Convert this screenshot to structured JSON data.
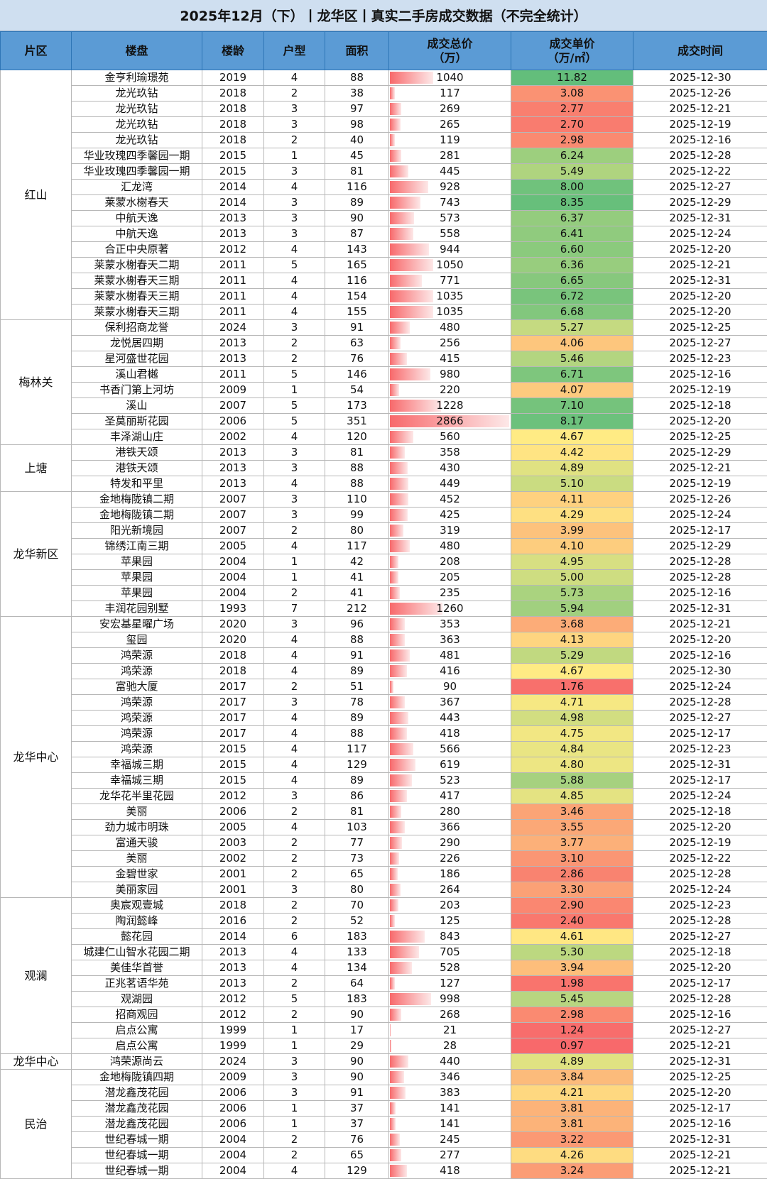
{
  "title": "2025年12月（下）丨龙华区丨真实二手房成交数据（不完全统计）",
  "headers": {
    "district": "片区",
    "estate": "楼盘",
    "year": "楼龄",
    "rooms": "户型",
    "area": "面积",
    "total_l1": "成交总价",
    "total_l2": "（万）",
    "unit_l1": "成交单价",
    "unit_l2": "（万/㎡）",
    "date": "成交时间"
  },
  "colors": {
    "header_bg": "#5b9bd5",
    "title_bg": "#cfdff0",
    "bar_red": "#f8696b",
    "scale_red": "#f8696b",
    "scale_yellow": "#ffeb84",
    "scale_green": "#63be7b"
  },
  "scale": {
    "total_max": 2866,
    "unit_min": 0.97,
    "unit_max": 11.82
  },
  "groups": [
    {
      "district": "红山",
      "rows": [
        [
          "金亨利瑜璟苑",
          "2019",
          "4",
          "88",
          "1040",
          "11.82",
          "2025-12-30"
        ],
        [
          "龙光玖钻",
          "2018",
          "2",
          "38",
          "117",
          "3.08",
          "2025-12-26"
        ],
        [
          "龙光玖钻",
          "2018",
          "3",
          "97",
          "269",
          "2.77",
          "2025-12-21"
        ],
        [
          "龙光玖钻",
          "2018",
          "3",
          "98",
          "265",
          "2.70",
          "2025-12-19"
        ],
        [
          "龙光玖钻",
          "2018",
          "2",
          "40",
          "119",
          "2.98",
          "2025-12-16"
        ],
        [
          "华业玫瑰四季馨园一期",
          "2015",
          "1",
          "45",
          "281",
          "6.24",
          "2025-12-28"
        ],
        [
          "华业玫瑰四季馨园一期",
          "2015",
          "3",
          "81",
          "445",
          "5.49",
          "2025-12-22"
        ],
        [
          "汇龙湾",
          "2014",
          "4",
          "116",
          "928",
          "8.00",
          "2025-12-27"
        ],
        [
          "莱蒙水榭春天",
          "2014",
          "3",
          "89",
          "743",
          "8.35",
          "2025-12-29"
        ],
        [
          "中航天逸",
          "2013",
          "3",
          "90",
          "573",
          "6.37",
          "2025-12-31"
        ],
        [
          "中航天逸",
          "2013",
          "3",
          "87",
          "558",
          "6.41",
          "2025-12-24"
        ],
        [
          "合正中央原著",
          "2012",
          "4",
          "143",
          "944",
          "6.60",
          "2025-12-20"
        ],
        [
          "莱蒙水榭春天二期",
          "2011",
          "5",
          "165",
          "1050",
          "6.36",
          "2025-12-21"
        ],
        [
          "莱蒙水榭春天三期",
          "2011",
          "4",
          "116",
          "771",
          "6.65",
          "2025-12-31"
        ],
        [
          "莱蒙水榭春天三期",
          "2011",
          "4",
          "154",
          "1035",
          "6.72",
          "2025-12-20"
        ],
        [
          "莱蒙水榭春天三期",
          "2011",
          "4",
          "155",
          "1035",
          "6.68",
          "2025-12-20"
        ]
      ]
    },
    {
      "district": "梅林关",
      "rows": [
        [
          "保利招商龙誉",
          "2024",
          "3",
          "91",
          "480",
          "5.27",
          "2025-12-25"
        ],
        [
          "龙悦居四期",
          "2013",
          "2",
          "63",
          "256",
          "4.06",
          "2025-12-27"
        ],
        [
          "星河盛世花园",
          "2013",
          "2",
          "76",
          "415",
          "5.46",
          "2025-12-23"
        ],
        [
          "溪山君樾",
          "2011",
          "5",
          "146",
          "980",
          "6.71",
          "2025-12-16"
        ],
        [
          "书香门第上河坊",
          "2009",
          "1",
          "54",
          "220",
          "4.07",
          "2025-12-19"
        ],
        [
          "溪山",
          "2007",
          "5",
          "173",
          "1228",
          "7.10",
          "2025-12-18"
        ],
        [
          "圣莫丽斯花园",
          "2006",
          "5",
          "351",
          "2866",
          "8.17",
          "2025-12-20"
        ],
        [
          "丰泽湖山庄",
          "2002",
          "4",
          "120",
          "560",
          "4.67",
          "2025-12-25"
        ]
      ]
    },
    {
      "district": "上塘",
      "rows": [
        [
          "港铁天颂",
          "2013",
          "3",
          "81",
          "358",
          "4.42",
          "2025-12-29"
        ],
        [
          "港铁天颂",
          "2013",
          "3",
          "88",
          "430",
          "4.89",
          "2025-12-21"
        ],
        [
          "特发和平里",
          "2013",
          "4",
          "88",
          "449",
          "5.10",
          "2025-12-19"
        ]
      ]
    },
    {
      "district": "龙华新区",
      "rows": [
        [
          "金地梅陇镇二期",
          "2007",
          "3",
          "110",
          "452",
          "4.11",
          "2025-12-26"
        ],
        [
          "金地梅陇镇二期",
          "2007",
          "3",
          "99",
          "425",
          "4.29",
          "2025-12-24"
        ],
        [
          "阳光新境园",
          "2007",
          "2",
          "80",
          "319",
          "3.99",
          "2025-12-17"
        ],
        [
          "锦绣江南三期",
          "2005",
          "4",
          "117",
          "480",
          "4.10",
          "2025-12-29"
        ],
        [
          "苹果园",
          "2004",
          "1",
          "42",
          "208",
          "4.95",
          "2025-12-28"
        ],
        [
          "苹果园",
          "2004",
          "1",
          "41",
          "205",
          "5.00",
          "2025-12-28"
        ],
        [
          "苹果园",
          "2004",
          "2",
          "41",
          "235",
          "5.73",
          "2025-12-16"
        ],
        [
          "丰润花园别墅",
          "1993",
          "7",
          "212",
          "1260",
          "5.94",
          "2025-12-31"
        ]
      ]
    },
    {
      "district": "龙华中心",
      "rows": [
        [
          "安宏基星曜广场",
          "2020",
          "3",
          "96",
          "353",
          "3.68",
          "2025-12-21"
        ],
        [
          "玺园",
          "2020",
          "4",
          "88",
          "363",
          "4.13",
          "2025-12-20"
        ],
        [
          "鸿荣源",
          "2018",
          "4",
          "91",
          "481",
          "5.29",
          "2025-12-16"
        ],
        [
          "鸿荣源",
          "2018",
          "4",
          "89",
          "416",
          "4.67",
          "2025-12-30"
        ],
        [
          "富驰大厦",
          "2017",
          "2",
          "51",
          "90",
          "1.76",
          "2025-12-24"
        ],
        [
          "鸿荣源",
          "2017",
          "3",
          "78",
          "367",
          "4.71",
          "2025-12-28"
        ],
        [
          "鸿荣源",
          "2017",
          "4",
          "89",
          "443",
          "4.98",
          "2025-12-27"
        ],
        [
          "鸿荣源",
          "2017",
          "4",
          "88",
          "418",
          "4.75",
          "2025-12-17"
        ],
        [
          "鸿荣源",
          "2015",
          "4",
          "117",
          "566",
          "4.84",
          "2025-12-23"
        ],
        [
          "幸福城三期",
          "2015",
          "4",
          "129",
          "619",
          "4.80",
          "2025-12-31"
        ],
        [
          "幸福城三期",
          "2015",
          "4",
          "89",
          "523",
          "5.88",
          "2025-12-17"
        ],
        [
          "龙华花半里花园",
          "2012",
          "3",
          "86",
          "417",
          "4.85",
          "2025-12-24"
        ],
        [
          "美丽",
          "2006",
          "2",
          "81",
          "280",
          "3.46",
          "2025-12-18"
        ],
        [
          "劲力城市明珠",
          "2005",
          "4",
          "103",
          "366",
          "3.55",
          "2025-12-20"
        ],
        [
          "富通天骏",
          "2003",
          "2",
          "77",
          "290",
          "3.77",
          "2025-12-19"
        ],
        [
          "美丽",
          "2002",
          "2",
          "73",
          "226",
          "3.10",
          "2025-12-22"
        ],
        [
          "金碧世家",
          "2001",
          "2",
          "65",
          "186",
          "2.86",
          "2025-12-28"
        ],
        [
          "美丽家园",
          "2001",
          "3",
          "80",
          "264",
          "3.30",
          "2025-12-24"
        ]
      ]
    },
    {
      "district": "观澜",
      "rows": [
        [
          "奥宸观壹城",
          "2018",
          "2",
          "70",
          "203",
          "2.90",
          "2025-12-23"
        ],
        [
          "陶润懿峰",
          "2016",
          "2",
          "52",
          "125",
          "2.40",
          "2025-12-28"
        ],
        [
          "懿花园",
          "2014",
          "6",
          "183",
          "843",
          "4.61",
          "2025-12-27"
        ],
        [
          "城建仁山智水花园二期",
          "2013",
          "4",
          "133",
          "705",
          "5.30",
          "2025-12-18"
        ],
        [
          "美佳华首誉",
          "2013",
          "4",
          "134",
          "528",
          "3.94",
          "2025-12-20"
        ],
        [
          "正兆茗语华苑",
          "2013",
          "2",
          "64",
          "127",
          "1.98",
          "2025-12-17"
        ],
        [
          "观湖园",
          "2012",
          "5",
          "183",
          "998",
          "5.45",
          "2025-12-28"
        ],
        [
          "招商观园",
          "2012",
          "2",
          "90",
          "268",
          "2.98",
          "2025-12-16"
        ],
        [
          "启点公寓",
          "1999",
          "1",
          "17",
          "21",
          "1.24",
          "2025-12-27"
        ],
        [
          "启点公寓",
          "1999",
          "1",
          "29",
          "28",
          "0.97",
          "2025-12-21"
        ]
      ]
    },
    {
      "district": "龙华中心",
      "rows": [
        [
          "鸿荣源尚云",
          "2024",
          "3",
          "90",
          "440",
          "4.89",
          "2025-12-31"
        ]
      ]
    },
    {
      "district": "民治",
      "rows": [
        [
          "金地梅陇镇四期",
          "2009",
          "3",
          "90",
          "346",
          "3.84",
          "2025-12-25"
        ],
        [
          "潜龙鑫茂花园",
          "2006",
          "3",
          "91",
          "383",
          "4.21",
          "2025-12-20"
        ],
        [
          "潜龙鑫茂花园",
          "2006",
          "1",
          "37",
          "141",
          "3.81",
          "2025-12-17"
        ],
        [
          "潜龙鑫茂花园",
          "2006",
          "1",
          "37",
          "141",
          "3.81",
          "2025-12-16"
        ],
        [
          "世纪春城一期",
          "2004",
          "2",
          "76",
          "245",
          "3.22",
          "2025-12-31"
        ],
        [
          "世纪春城一期",
          "2004",
          "2",
          "65",
          "277",
          "4.26",
          "2025-12-21"
        ],
        [
          "世纪春城一期",
          "2004",
          "4",
          "129",
          "418",
          "3.24",
          "2025-12-21"
        ]
      ]
    }
  ]
}
